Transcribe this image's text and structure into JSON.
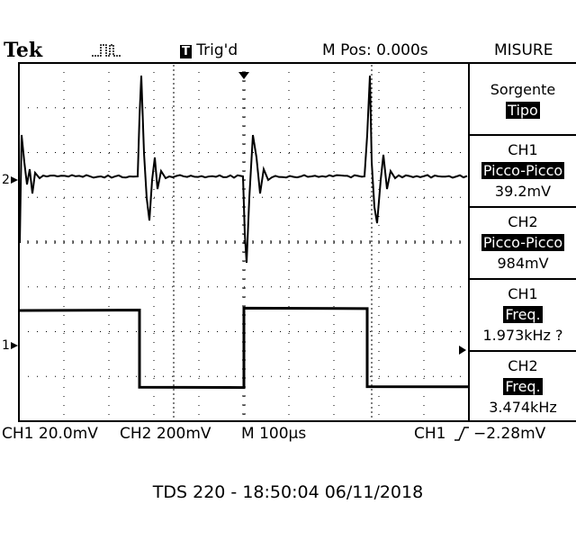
{
  "header": {
    "brand": "Tek",
    "trigger_status": "Trig'd",
    "trigger_status_icon": "T",
    "position": "M Pos: 0.000s",
    "menu_title": "MISURE"
  },
  "measure_menu": {
    "source_label": "Sorgente",
    "type_label": "Tipo",
    "measurements": [
      {
        "channel": "CH1",
        "type": "Picco-Picco",
        "value": "39.2mV"
      },
      {
        "channel": "CH2",
        "type": "Picco-Picco",
        "value": "984mV"
      },
      {
        "channel": "CH1",
        "type": "Freq.",
        "value": "1.973kHz ?"
      },
      {
        "channel": "CH2",
        "type": "Freq.",
        "value": "3.474kHz"
      }
    ]
  },
  "status_bar": {
    "ch1_scale": "CH1  20.0mV",
    "ch2_scale": "CH2  200mV",
    "timebase": "M 100µs",
    "trigger_source": "CH1",
    "trigger_level": "−2.28mV"
  },
  "markers": {
    "ch2": "2",
    "ch1": "1"
  },
  "footer": "TDS 220 - 18:50:04   06/11/2018",
  "colors": {
    "background": "#ffffff",
    "trace": "#000000"
  }
}
